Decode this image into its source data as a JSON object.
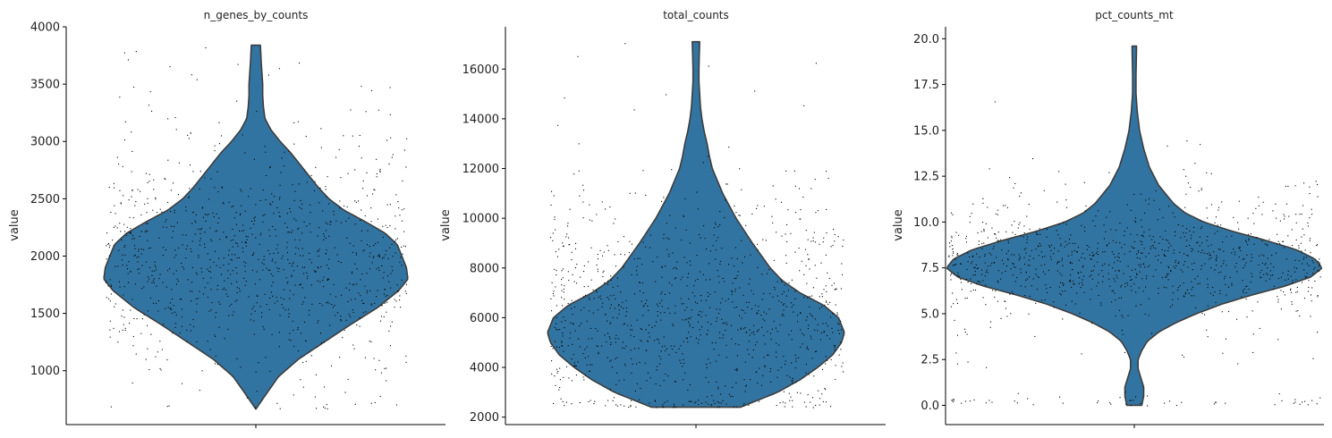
{
  "chart_data": [
    {
      "type": "violin",
      "title": "n_genes_by_counts",
      "ylabel": "value",
      "xlabel": "",
      "ylim": [
        530,
        4000
      ],
      "yticks": [
        1000,
        1500,
        2000,
        2500,
        3000,
        3500,
        4000
      ],
      "ytick_labels": [
        "1000",
        "1500",
        "2000",
        "2500",
        "3000",
        "3500",
        "4000"
      ],
      "data_range": [
        665,
        3840
      ],
      "n_points": 1050,
      "seed": 11,
      "density": [
        [
          665,
          0.0
        ],
        [
          800,
          0.07
        ],
        [
          950,
          0.15
        ],
        [
          1100,
          0.28
        ],
        [
          1250,
          0.45
        ],
        [
          1400,
          0.62
        ],
        [
          1550,
          0.8
        ],
        [
          1700,
          0.94
        ],
        [
          1800,
          1.0
        ],
        [
          1900,
          0.99
        ],
        [
          2000,
          0.96
        ],
        [
          2100,
          0.93
        ],
        [
          2200,
          0.85
        ],
        [
          2300,
          0.72
        ],
        [
          2400,
          0.58
        ],
        [
          2500,
          0.48
        ],
        [
          2600,
          0.41
        ],
        [
          2700,
          0.35
        ],
        [
          2800,
          0.29
        ],
        [
          2900,
          0.23
        ],
        [
          3000,
          0.16
        ],
        [
          3100,
          0.1
        ],
        [
          3200,
          0.06
        ],
        [
          3300,
          0.05
        ],
        [
          3400,
          0.045
        ],
        [
          3500,
          0.045
        ],
        [
          3600,
          0.04
        ],
        [
          3700,
          0.035
        ],
        [
          3840,
          0.03
        ]
      ],
      "point_mix": [
        [
          0.78,
          1930,
          430
        ],
        [
          0.22,
          2150,
          780
        ]
      ]
    },
    {
      "type": "violin",
      "title": "total_counts",
      "ylabel": "value",
      "xlabel": "",
      "ylim": [
        1700,
        17700
      ],
      "yticks": [
        2000,
        4000,
        6000,
        8000,
        10000,
        12000,
        14000,
        16000
      ],
      "ytick_labels": [
        "2000",
        "4000",
        "6000",
        "8000",
        "10000",
        "12000",
        "14000",
        "16000"
      ],
      "data_range": [
        2400,
        17100
      ],
      "n_points": 1050,
      "seed": 23,
      "density": [
        [
          2400,
          0.3
        ],
        [
          3000,
          0.55
        ],
        [
          3500,
          0.7
        ],
        [
          4000,
          0.82
        ],
        [
          4500,
          0.92
        ],
        [
          5000,
          0.98
        ],
        [
          5400,
          1.0
        ],
        [
          6000,
          0.96
        ],
        [
          6500,
          0.86
        ],
        [
          7000,
          0.7
        ],
        [
          7500,
          0.58
        ],
        [
          8000,
          0.5
        ],
        [
          8500,
          0.44
        ],
        [
          9000,
          0.38
        ],
        [
          10000,
          0.27
        ],
        [
          11000,
          0.18
        ],
        [
          12000,
          0.11
        ],
        [
          12500,
          0.09
        ],
        [
          13000,
          0.075
        ],
        [
          13500,
          0.055
        ],
        [
          14000,
          0.04
        ],
        [
          14500,
          0.03
        ],
        [
          15000,
          0.025
        ],
        [
          15500,
          0.02
        ],
        [
          16000,
          0.02
        ],
        [
          16500,
          0.022
        ],
        [
          17100,
          0.025
        ]
      ],
      "point_mix": [
        [
          0.8,
          6000,
          2100
        ],
        [
          0.2,
          7500,
          3500
        ]
      ]
    },
    {
      "type": "violin",
      "title": "pct_counts_mt",
      "ylabel": "value",
      "xlabel": "",
      "ylim": [
        -1.05,
        20.65
      ],
      "yticks": [
        0,
        2.5,
        5,
        7.5,
        10,
        12.5,
        15,
        17.5,
        20
      ],
      "ytick_labels": [
        "0.0",
        "2.5",
        "5.0",
        "7.5",
        "10.0",
        "12.5",
        "15.0",
        "17.5",
        "20.0"
      ],
      "data_range": [
        0,
        19.6
      ],
      "n_points": 1050,
      "seed": 37,
      "density": [
        [
          0.0,
          0.04
        ],
        [
          0.5,
          0.05
        ],
        [
          1.0,
          0.05
        ],
        [
          1.5,
          0.035
        ],
        [
          2.0,
          0.02
        ],
        [
          2.5,
          0.02
        ],
        [
          3.0,
          0.04
        ],
        [
          3.5,
          0.07
        ],
        [
          4.0,
          0.13
        ],
        [
          4.5,
          0.22
        ],
        [
          5.0,
          0.33
        ],
        [
          5.5,
          0.46
        ],
        [
          6.0,
          0.62
        ],
        [
          6.5,
          0.8
        ],
        [
          7.0,
          0.94
        ],
        [
          7.5,
          1.0
        ],
        [
          8.0,
          0.96
        ],
        [
          8.5,
          0.86
        ],
        [
          9.0,
          0.7
        ],
        [
          9.5,
          0.52
        ],
        [
          10.0,
          0.37
        ],
        [
          10.5,
          0.27
        ],
        [
          11.0,
          0.21
        ],
        [
          11.5,
          0.17
        ],
        [
          12.0,
          0.13
        ],
        [
          13.0,
          0.08
        ],
        [
          14.0,
          0.05
        ],
        [
          15.0,
          0.028
        ],
        [
          16.0,
          0.016
        ],
        [
          17.0,
          0.009
        ],
        [
          18.0,
          0.009
        ],
        [
          19.0,
          0.011
        ],
        [
          19.6,
          0.012
        ]
      ],
      "point_mix": [
        [
          0.72,
          7.8,
          1.5
        ],
        [
          0.24,
          8.5,
          2.6
        ],
        [
          0.04,
          0.2,
          0.2
        ]
      ]
    }
  ],
  "colors": {
    "violin_fill": "#3274a1",
    "violin_edge": "#3d3d3d",
    "points": "#000000",
    "axis": "#000000"
  }
}
